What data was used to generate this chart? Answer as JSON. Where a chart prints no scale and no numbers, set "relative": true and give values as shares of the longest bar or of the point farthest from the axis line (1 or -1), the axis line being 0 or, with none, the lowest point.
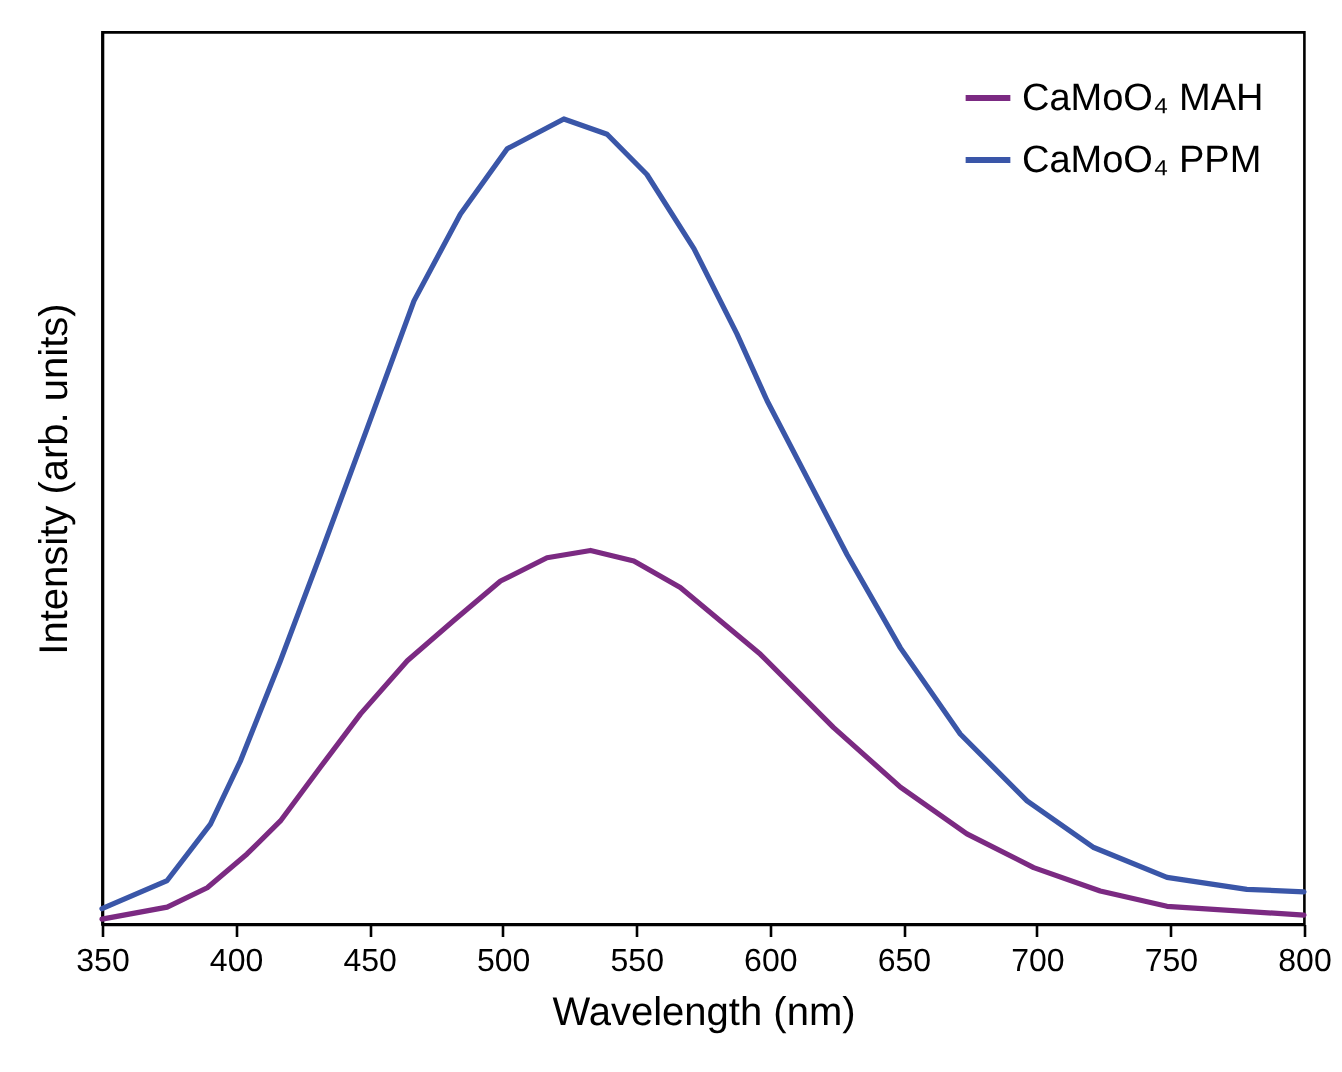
{
  "chart_data": {
    "type": "line",
    "xlabel": "Wavelength (nm)",
    "ylabel": "Intensity (arb. units)",
    "relative": true,
    "xlim": [
      350,
      800
    ],
    "xticks": [
      350,
      400,
      450,
      500,
      550,
      600,
      650,
      700,
      750,
      800
    ],
    "legend": "top right",
    "grid": false,
    "line_style": "solid",
    "marker": "none",
    "series": [
      {
        "name": "CaMoO₄ MAH",
        "color": "#7b2a82",
        "x": [
          350,
          374.4,
          389.4,
          404.3,
          416.8,
          431.8,
          446.8,
          464.3,
          481.7,
          499.2,
          516.6,
          532.9,
          549.1,
          566.5,
          596.5,
          623.9,
          648.9,
          673.8,
          698.8,
          723.7,
          748.7,
          800
        ],
        "values": [
          0.006,
          0.021,
          0.045,
          0.087,
          0.128,
          0.195,
          0.261,
          0.327,
          0.377,
          0.426,
          0.455,
          0.464,
          0.451,
          0.418,
          0.335,
          0.244,
          0.17,
          0.112,
          0.07,
          0.041,
          0.022,
          0.011
        ]
      },
      {
        "name": "CaMoO₄ PPM",
        "color": "#3a56a8",
        "x": [
          350,
          374.4,
          390.6,
          401.9,
          416.8,
          431.8,
          449.3,
          466.8,
          484.2,
          501.7,
          522.9,
          539.1,
          554,
          571.6,
          587.7,
          599,
          628.9,
          648.9,
          671.3,
          696.3,
          721.3,
          748.7,
          778.6,
          800
        ],
        "values": [
          0.019,
          0.054,
          0.124,
          0.203,
          0.327,
          0.459,
          0.616,
          0.774,
          0.882,
          0.963,
          1,
          0.981,
          0.931,
          0.839,
          0.733,
          0.65,
          0.459,
          0.343,
          0.236,
          0.153,
          0.095,
          0.058,
          0.043,
          0.04
        ]
      }
    ]
  }
}
